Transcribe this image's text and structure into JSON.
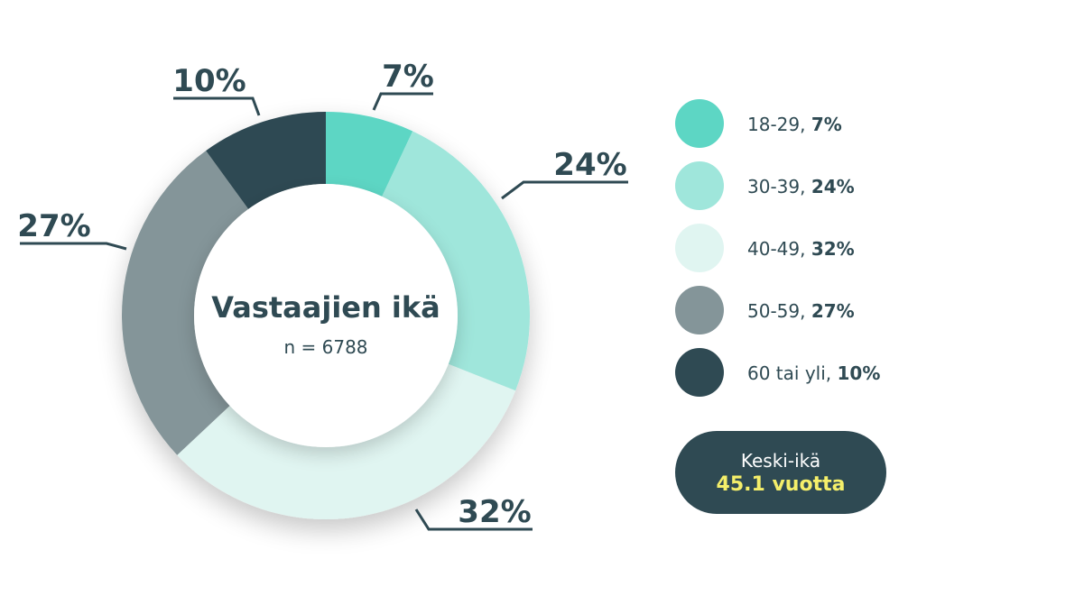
{
  "chart_data": {
    "type": "pie",
    "title": "Vastaajien ikä",
    "subtitle": "n = 6788",
    "categories": [
      "18-29",
      "30-39",
      "40-49",
      "50-59",
      "60 tai yli"
    ],
    "values": [
      7,
      24,
      32,
      27,
      10
    ],
    "value_labels": [
      "7%",
      "24%",
      "32%",
      "27%",
      "10%"
    ],
    "colors": [
      "#5dd6c4",
      "#9fe6db",
      "#e0f5f1",
      "#849599",
      "#2f4a53"
    ],
    "legend_position": "right"
  },
  "legend": {
    "items": [
      {
        "label": "18-29, ",
        "value": "7%",
        "color": "#5dd6c4"
      },
      {
        "label": "30-39, ",
        "value": "24%",
        "color": "#9fe6db"
      },
      {
        "label": "40-49, ",
        "value": "32%",
        "color": "#e0f5f1"
      },
      {
        "label": "50-59, ",
        "value": "27%",
        "color": "#849599"
      },
      {
        "label": "60 tai yli, ",
        "value": "10%",
        "color": "#2f4a53"
      }
    ]
  },
  "average": {
    "label": "Keski-ikä",
    "value": "45.1 vuotta"
  },
  "colors": {
    "text": "#2f4a53",
    "highlight": "#f5ef6a"
  }
}
